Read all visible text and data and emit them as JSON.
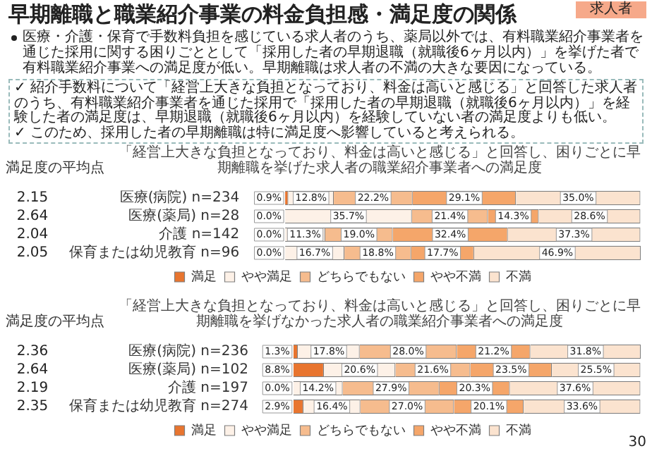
{
  "chart_data": [
    {
      "type": "other",
      "title": "早期離職と職業紹介事業の料金負担感・満足度の関係",
      "subtitle": "医療・介護・保育で手数料負担を感じている求人者のうち、薬局以外では、有料職業紹介事業者を通じた採用に関する困りごととして「採用した者の早期退職（就職後6ヶ月以内）」を挙げた者で有料職業紹介事業への満足度が低い。早期離職は求人者の不満の大きな要因になっている。",
      "annotations": [
        "求人者",
        "✓ 紹介手数料について「経営上大きな負担となっており、料金は高いと感じる」と回答した求人者のうち、有料職業紹介事業者を通じた採用で「採用した者の早期退職（就職後6ヶ月以内）」を経験した者の満足度は、早期退職（就職後6ヶ月以内）を経験していない者の満足度よりも低い。",
        "✓ このため、採用した者の早期離職は特に満足度へ影響していると考えられる。"
      ]
    },
    {
      "type": "bar",
      "orientation": "horizontal",
      "stacked": true,
      "legend": "bottom",
      "title": "「経営上大きな負担となっており、料金は高いと感じる」と回答し、困りごとに早期離職を挙げた求人者の職業紹介事業者への満足度",
      "categories": [
        "医療(病院) n=234",
        "医療(薬局) n=28",
        "介護 n=142",
        "保育または幼児教育 n=96"
      ],
      "series": [
        {
          "name": "満足",
          "color": "#e8752f",
          "values": [
            0.9,
            0,
            0,
            0
          ],
          "value_labels": [
            "0.9%",
            "0.0%",
            "0.0%",
            "0.0%"
          ]
        },
        {
          "name": "やや満足",
          "color": "#fdf1e7",
          "values": [
            12.8,
            35.7,
            11.3,
            16.7
          ],
          "value_labels": [
            "12.8%",
            "35.7%",
            "11.3%",
            "16.7%"
          ]
        },
        {
          "name": "どちらでもない",
          "color": "#f6bc8e",
          "values": [
            22.2,
            21.4,
            19.0,
            18.8
          ],
          "value_labels": [
            "22.2%",
            "21.4%",
            "19.0%",
            "18.8%"
          ]
        },
        {
          "name": "やや不満",
          "color": "#f5a66a",
          "values": [
            29.1,
            14.3,
            32.4,
            17.7
          ],
          "value_labels": [
            "29.1%",
            "14.3%",
            "32.4%",
            "17.7%"
          ]
        },
        {
          "name": "不満",
          "color": "#fbe3cf",
          "values": [
            35.0,
            28.6,
            37.3,
            46.9
          ],
          "value_labels": [
            "35.0%",
            "28.6%",
            "37.3%",
            "46.9%"
          ]
        }
      ],
      "annotations": [
        "満足度の平均点",
        "2.15",
        "2.64",
        "2.04",
        "2.05"
      ]
    },
    {
      "type": "bar",
      "orientation": "horizontal",
      "stacked": true,
      "legend": "bottom",
      "title": "「経営上大きな負担となっており、料金は高いと感じる」と回答し、困りごとに早期離職を挙げなかった求人者の職業紹介事業者への満足度",
      "categories": [
        "医療(病院) n=236",
        "医療(薬局) n=102",
        "介護 n=197",
        "保育または幼児教育 n=274"
      ],
      "series": [
        {
          "name": "満足",
          "color": "#e8752f",
          "values": [
            1.3,
            8.8,
            0,
            2.9
          ],
          "value_labels": [
            "1.3%",
            "8.8%",
            "0.0%",
            "2.9%"
          ]
        },
        {
          "name": "やや満足",
          "color": "#fdf1e7",
          "values": [
            17.8,
            20.6,
            14.2,
            16.4
          ],
          "value_labels": [
            "17.8%",
            "20.6%",
            "14.2%",
            "16.4%"
          ]
        },
        {
          "name": "どちらでもない",
          "color": "#f6bc8e",
          "values": [
            28.0,
            21.6,
            27.9,
            27.0
          ],
          "value_labels": [
            "28.0%",
            "21.6%",
            "27.9%",
            "27.0%"
          ]
        },
        {
          "name": "やや不満",
          "color": "#f5a66a",
          "values": [
            21.2,
            23.5,
            20.3,
            20.1
          ],
          "value_labels": [
            "21.2%",
            "23.5%",
            "20.3%",
            "20.1%"
          ]
        },
        {
          "name": "不満",
          "color": "#fbe3cf",
          "values": [
            31.8,
            25.5,
            37.6,
            33.6
          ],
          "value_labels": [
            "31.8%",
            "25.5%",
            "37.6%",
            "33.6%"
          ]
        }
      ],
      "annotations": [
        "満足度の平均点",
        "2.36",
        "2.64",
        "2.19",
        "2.35",
        "30"
      ]
    }
  ]
}
